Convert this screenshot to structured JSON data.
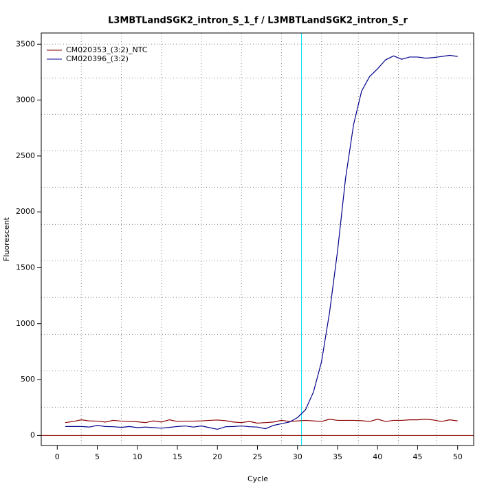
{
  "chart_data": {
    "type": "line",
    "title": "L3MBTLandSGK2_intron_S_1_f / L3MBTLandSGK2_intron_S_r",
    "x_label": "Cycle",
    "y_label": "Fluorescent",
    "x": [
      1,
      2,
      3,
      4,
      5,
      6,
      7,
      8,
      9,
      10,
      11,
      12,
      13,
      14,
      15,
      16,
      17,
      18,
      19,
      20,
      21,
      22,
      23,
      24,
      25,
      26,
      27,
      28,
      29,
      30,
      31,
      32,
      33,
      34,
      35,
      36,
      37,
      38,
      39,
      40,
      41,
      42,
      43,
      44,
      45,
      46,
      47,
      48,
      49,
      50
    ],
    "series": [
      {
        "name": "CM020353_(3:2)_NTC",
        "color": "#8b0000",
        "values": [
          115,
          125,
          140,
          130,
          128,
          120,
          135,
          128,
          125,
          122,
          115,
          130,
          120,
          140,
          125,
          128,
          128,
          130,
          135,
          138,
          132,
          120,
          115,
          125,
          110,
          115,
          120,
          135,
          125,
          130,
          135,
          130,
          125,
          145,
          135,
          135,
          135,
          132,
          125,
          145,
          125,
          135,
          135,
          140,
          140,
          145,
          138,
          125,
          140,
          130
        ]
      },
      {
        "name": "CM020396_(3:2)",
        "color": "#00008b",
        "values": [
          80,
          80,
          80,
          75,
          90,
          80,
          78,
          72,
          80,
          70,
          75,
          70,
          65,
          72,
          80,
          85,
          75,
          85,
          70,
          55,
          78,
          80,
          85,
          78,
          75,
          60,
          90,
          105,
          120,
          160,
          230,
          390,
          660,
          1100,
          1650,
          2300,
          2780,
          3080,
          3210,
          3280,
          3360,
          3395,
          3365,
          3385,
          3385,
          3375,
          3380,
          3390,
          3400,
          3390
        ]
      }
    ],
    "xlim": [
      -2,
      52
    ],
    "ylim": [
      -90,
      3600
    ],
    "xticks": [
      0,
      5,
      10,
      15,
      20,
      25,
      30,
      35,
      40,
      45,
      50
    ],
    "yticks": [
      0,
      500,
      1000,
      1500,
      2000,
      2500,
      3000,
      3500
    ],
    "xgrid": [
      3,
      8,
      13,
      18,
      23,
      28,
      33,
      37.6,
      42.6,
      47.4
    ],
    "ygrid": [
      252,
      578,
      904,
      1236,
      1562,
      1888,
      2220,
      2546,
      2872,
      3198,
      3500
    ],
    "threshold_cycle": 30.5,
    "threshold_color": "#00e5ee",
    "baseline": 0,
    "baseline_color": "#8b0000",
    "legend": "top-left"
  }
}
